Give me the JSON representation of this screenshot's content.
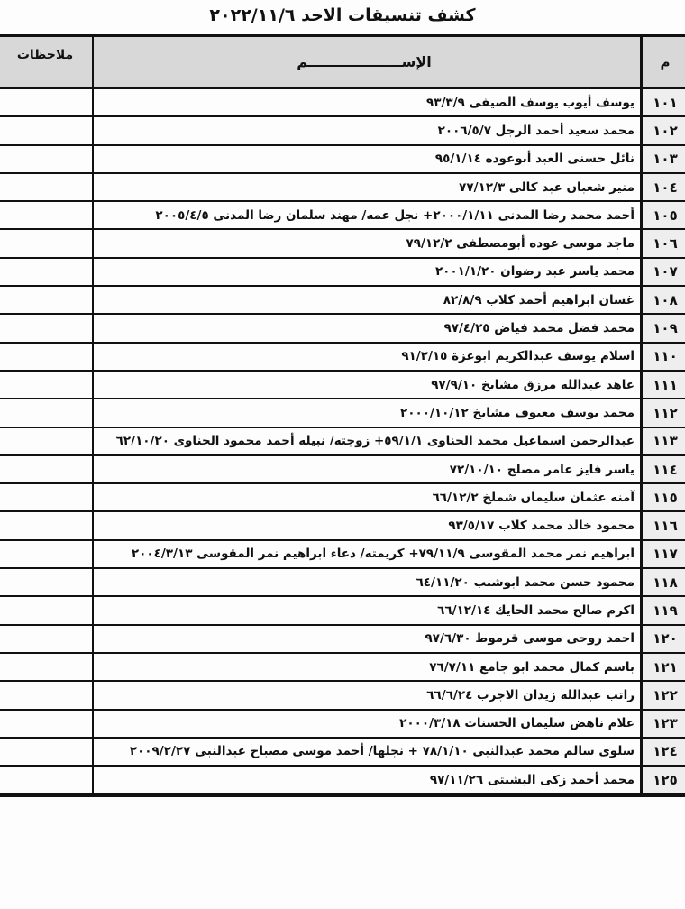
{
  "title": "كشف تنسيقات الاحد ٢٠٢٢/١١/٦",
  "headers": {
    "number": "م",
    "name": "الإســـــــــــــــــــم",
    "notes": "ملاحظات"
  },
  "rows": [
    {
      "number": "١٠١",
      "name": "يوسف أيوب يوسف الصيفى ٩٣/٣/٩",
      "notes": ""
    },
    {
      "number": "١٠٢",
      "name": "محمد سعيد أحمد الرجل ٢٠٠٦/٥/٧",
      "notes": ""
    },
    {
      "number": "١٠٣",
      "name": "نائل حسنى العبد أبوعوده ٩٥/١/١٤",
      "notes": ""
    },
    {
      "number": "١٠٤",
      "name": "منير شعبان عبد كالى ٧٧/١٢/٣",
      "notes": ""
    },
    {
      "number": "١٠٥",
      "name": "أحمد محمد رضا المدنى ٢٠٠٠/١/١١+ نجل عمه/ مهند سلمان رضا المدنى ٢٠٠٥/٤/٥",
      "notes": ""
    },
    {
      "number": "١٠٦",
      "name": "ماجد موسى عوده أبومصطفى ٧٩/١٢/٢",
      "notes": ""
    },
    {
      "number": "١٠٧",
      "name": "محمد ياسر عبد رضوان ٢٠٠١/١/٢٠",
      "notes": ""
    },
    {
      "number": "١٠٨",
      "name": "غسان ابراهيم أحمد كلاب ٨٢/٨/٩",
      "notes": ""
    },
    {
      "number": "١٠٩",
      "name": "محمد فضل محمد فياض ٩٧/٤/٢٥",
      "notes": ""
    },
    {
      "number": "١١٠",
      "name": "اسلام يوسف عبدالكريم ابوعزة ٩١/٢/١٥",
      "notes": ""
    },
    {
      "number": "١١١",
      "name": "عاهد عبدالله مرزق مشايخ ٩٧/٩/١٠",
      "notes": ""
    },
    {
      "number": "١١٢",
      "name": "محمد يوسف معيوف مشايخ ٢٠٠٠/١٠/١٢",
      "notes": ""
    },
    {
      "number": "١١٣",
      "name": "عبدالرحمن اسماعيل محمد الحناوى ٥٩/١/١+ زوجته/ نبيله أحمد محمود الحناوى ٦٢/١٠/٢٠",
      "notes": ""
    },
    {
      "number": "١١٤",
      "name": "ياسر فايز عامر مصلح ٧٢/١٠/١٠",
      "notes": ""
    },
    {
      "number": "١١٥",
      "name": "آمنه عثمان سليمان شملخ ٦٦/١٢/٢",
      "notes": ""
    },
    {
      "number": "١١٦",
      "name": "محمود خالد محمد كلاب ٩٣/٥/١٧",
      "notes": ""
    },
    {
      "number": "١١٧",
      "name": "ابراهيم نمر محمد المقوسى ٧٩/١١/٩+ كريمته/ دعاء ابراهيم نمر المقوسى ٢٠٠٤/٣/١٣",
      "notes": ""
    },
    {
      "number": "١١٨",
      "name": "محمود حسن محمد ابوشنب ٦٤/١١/٢٠",
      "notes": ""
    },
    {
      "number": "١١٩",
      "name": "اكرم صالح محمد الحايك ٦٦/١٢/١٤",
      "notes": ""
    },
    {
      "number": "١٢٠",
      "name": "احمد روحى موسى قرموط ٩٧/٦/٣٠",
      "notes": ""
    },
    {
      "number": "١٢١",
      "name": "باسم كمال محمد ابو جامع ٧٦/٧/١١",
      "notes": ""
    },
    {
      "number": "١٢٢",
      "name": "راتب عبدالله زيدان الاجرب ٦٦/٦/٢٤",
      "notes": ""
    },
    {
      "number": "١٢٣",
      "name": "علام ناهض سليمان الحسنات ٢٠٠٠/٣/١٨",
      "notes": ""
    },
    {
      "number": "١٢٤",
      "name": "سلوى سالم محمد عبدالنبى ٧٨/١/١٠ + نجلها/ أحمد موسى مصباح عبدالنبى ٢٠٠٩/٢/٢٧",
      "notes": ""
    },
    {
      "number": "١٢٥",
      "name": "محمد أحمد زكى البشيتى ٩٧/١١/٢٦",
      "notes": ""
    }
  ]
}
